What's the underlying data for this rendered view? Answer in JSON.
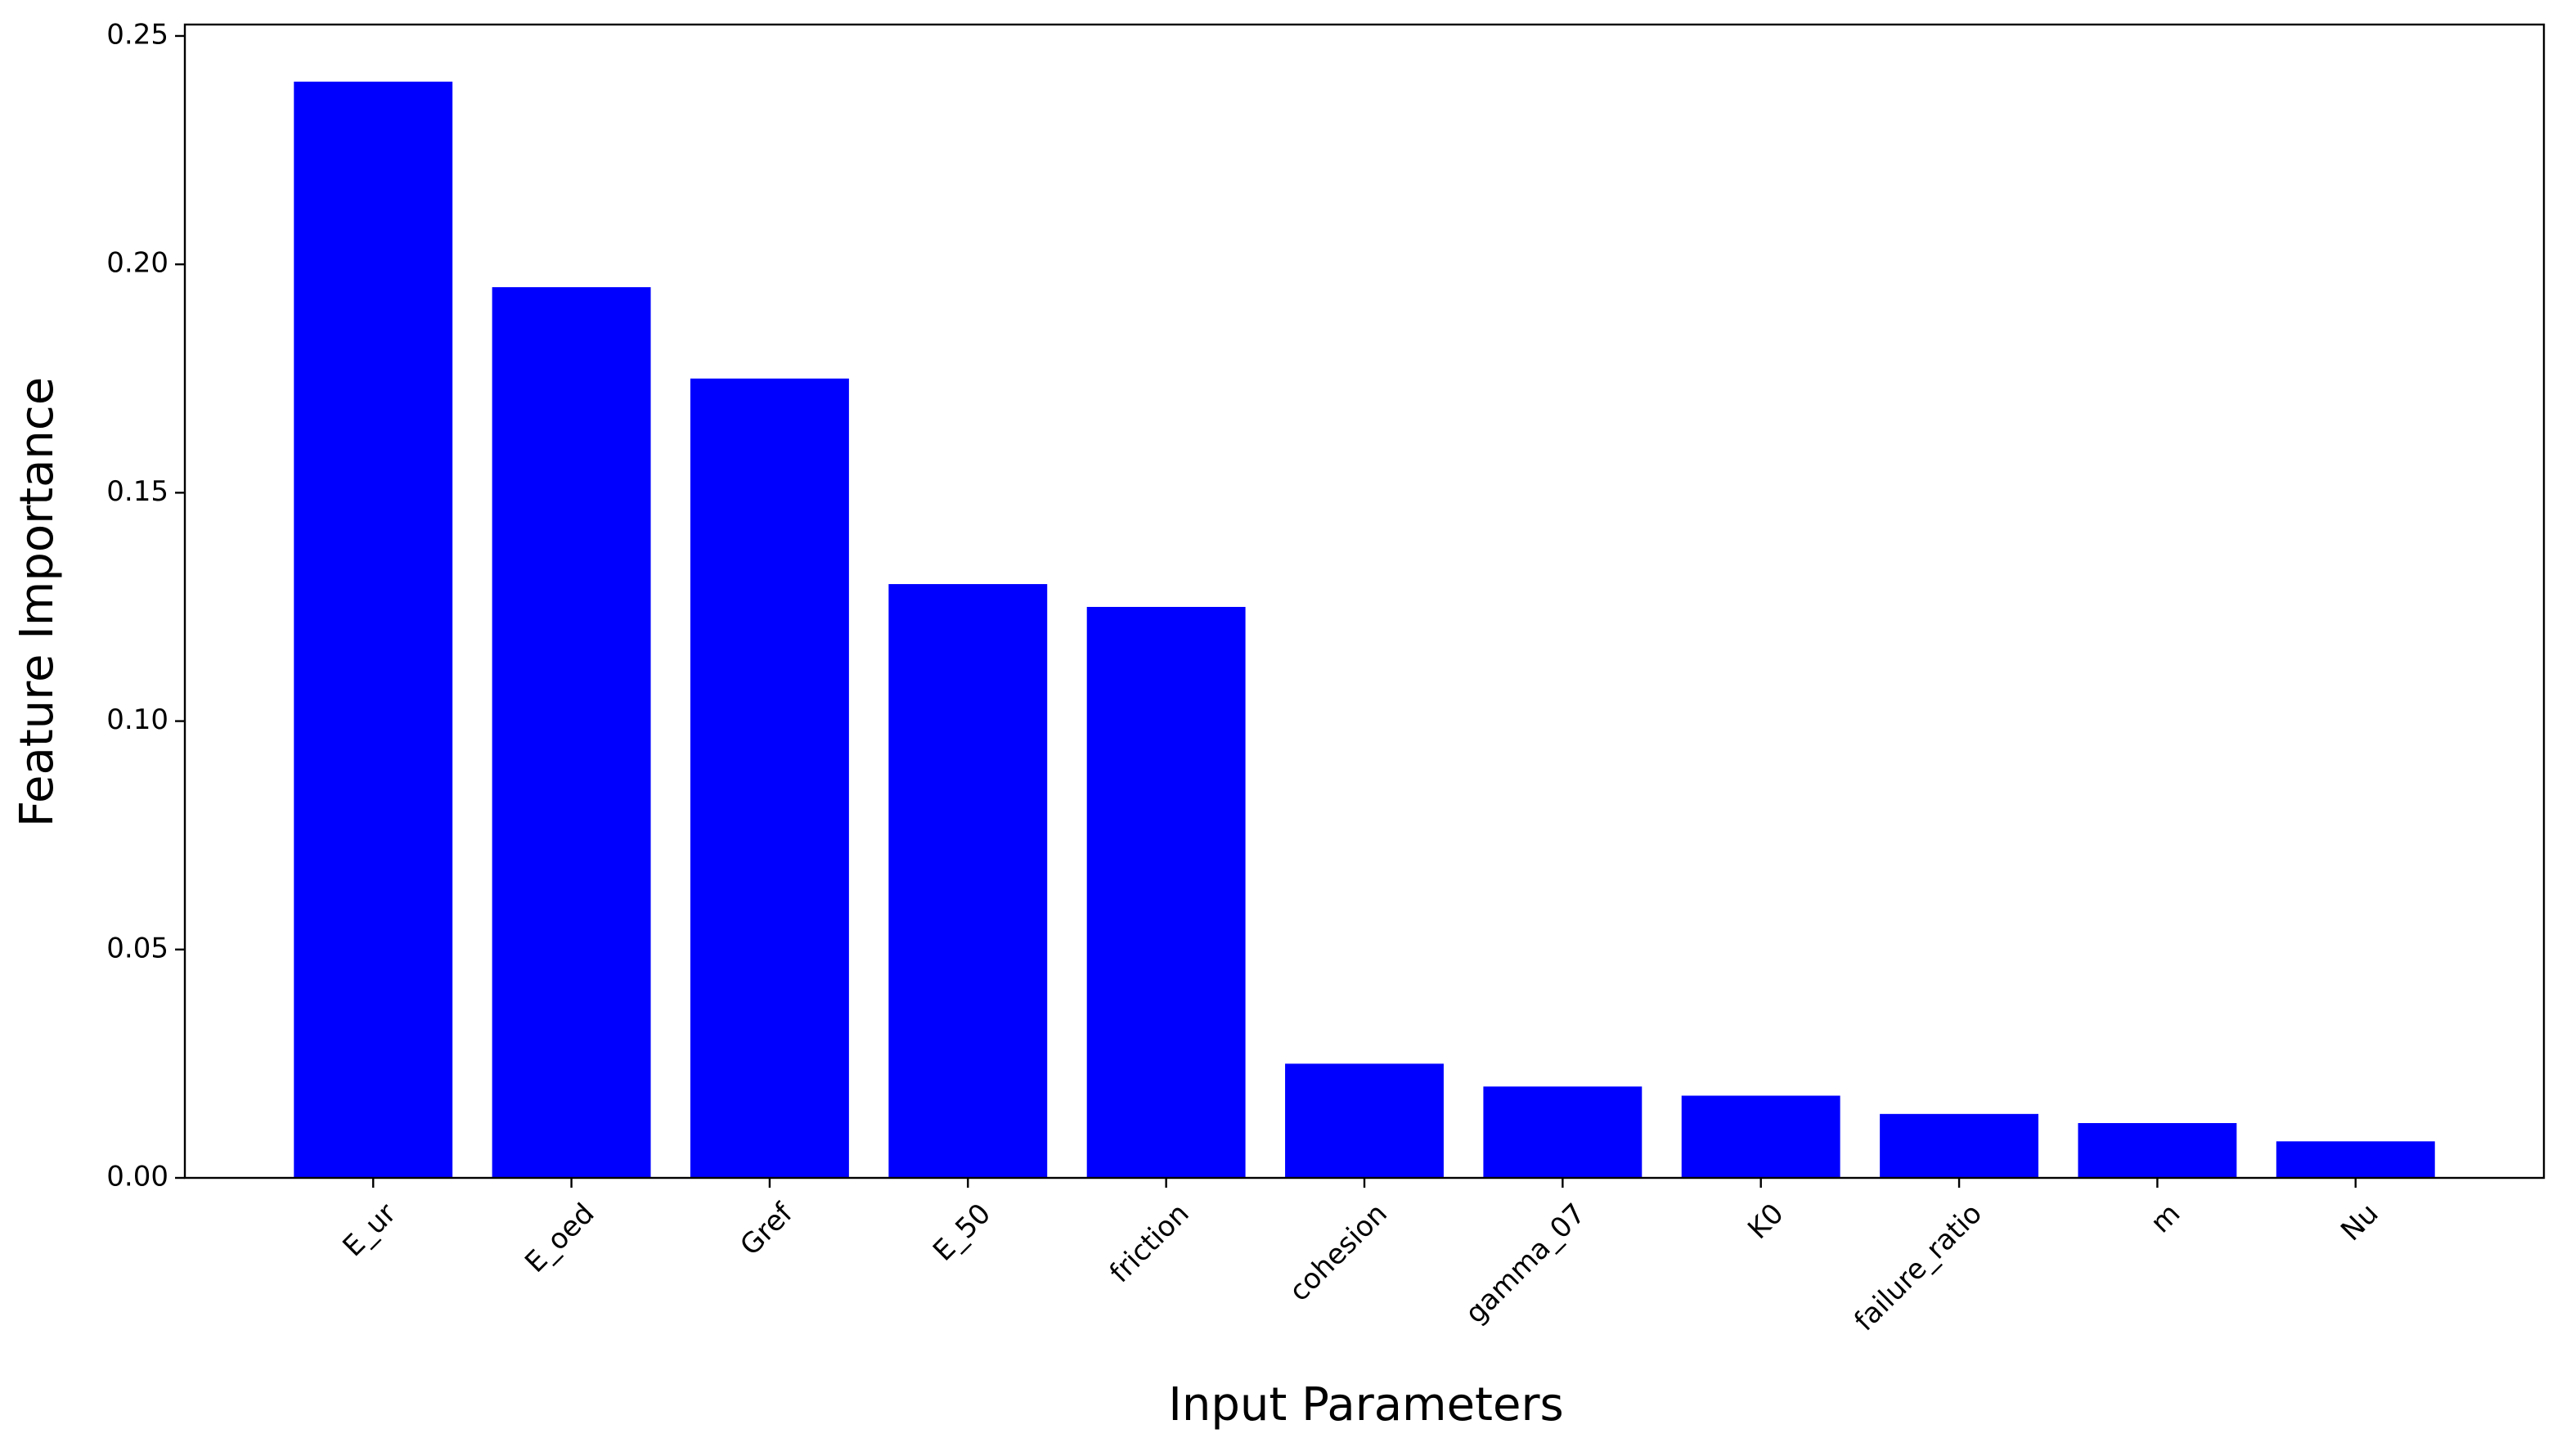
{
  "chart_data": {
    "type": "bar",
    "x_label": "Input Parameters",
    "y_label": "Feature Importance",
    "categories": [
      "E_ur",
      "E_oed",
      "Gref",
      "E_50",
      "friction",
      "cohesion",
      "gamma_07",
      "K0",
      "failure_ratio",
      "m",
      "Nu"
    ],
    "values": [
      0.24,
      0.195,
      0.175,
      0.13,
      0.125,
      0.025,
      0.02,
      0.018,
      0.014,
      0.012,
      0.008
    ],
    "color": "#0000ff",
    "ylim": [
      0,
      0.2525
    ],
    "yticks": [
      {
        "value": 0,
        "label": "0.00"
      },
      {
        "value": 0.05,
        "label": "0.05"
      },
      {
        "value": 0.1,
        "label": "0.10"
      },
      {
        "value": 0.15,
        "label": "0.15"
      },
      {
        "value": 0.2,
        "label": "0.20"
      },
      {
        "value": 0.25,
        "label": "0.25"
      }
    ],
    "grid": false
  }
}
